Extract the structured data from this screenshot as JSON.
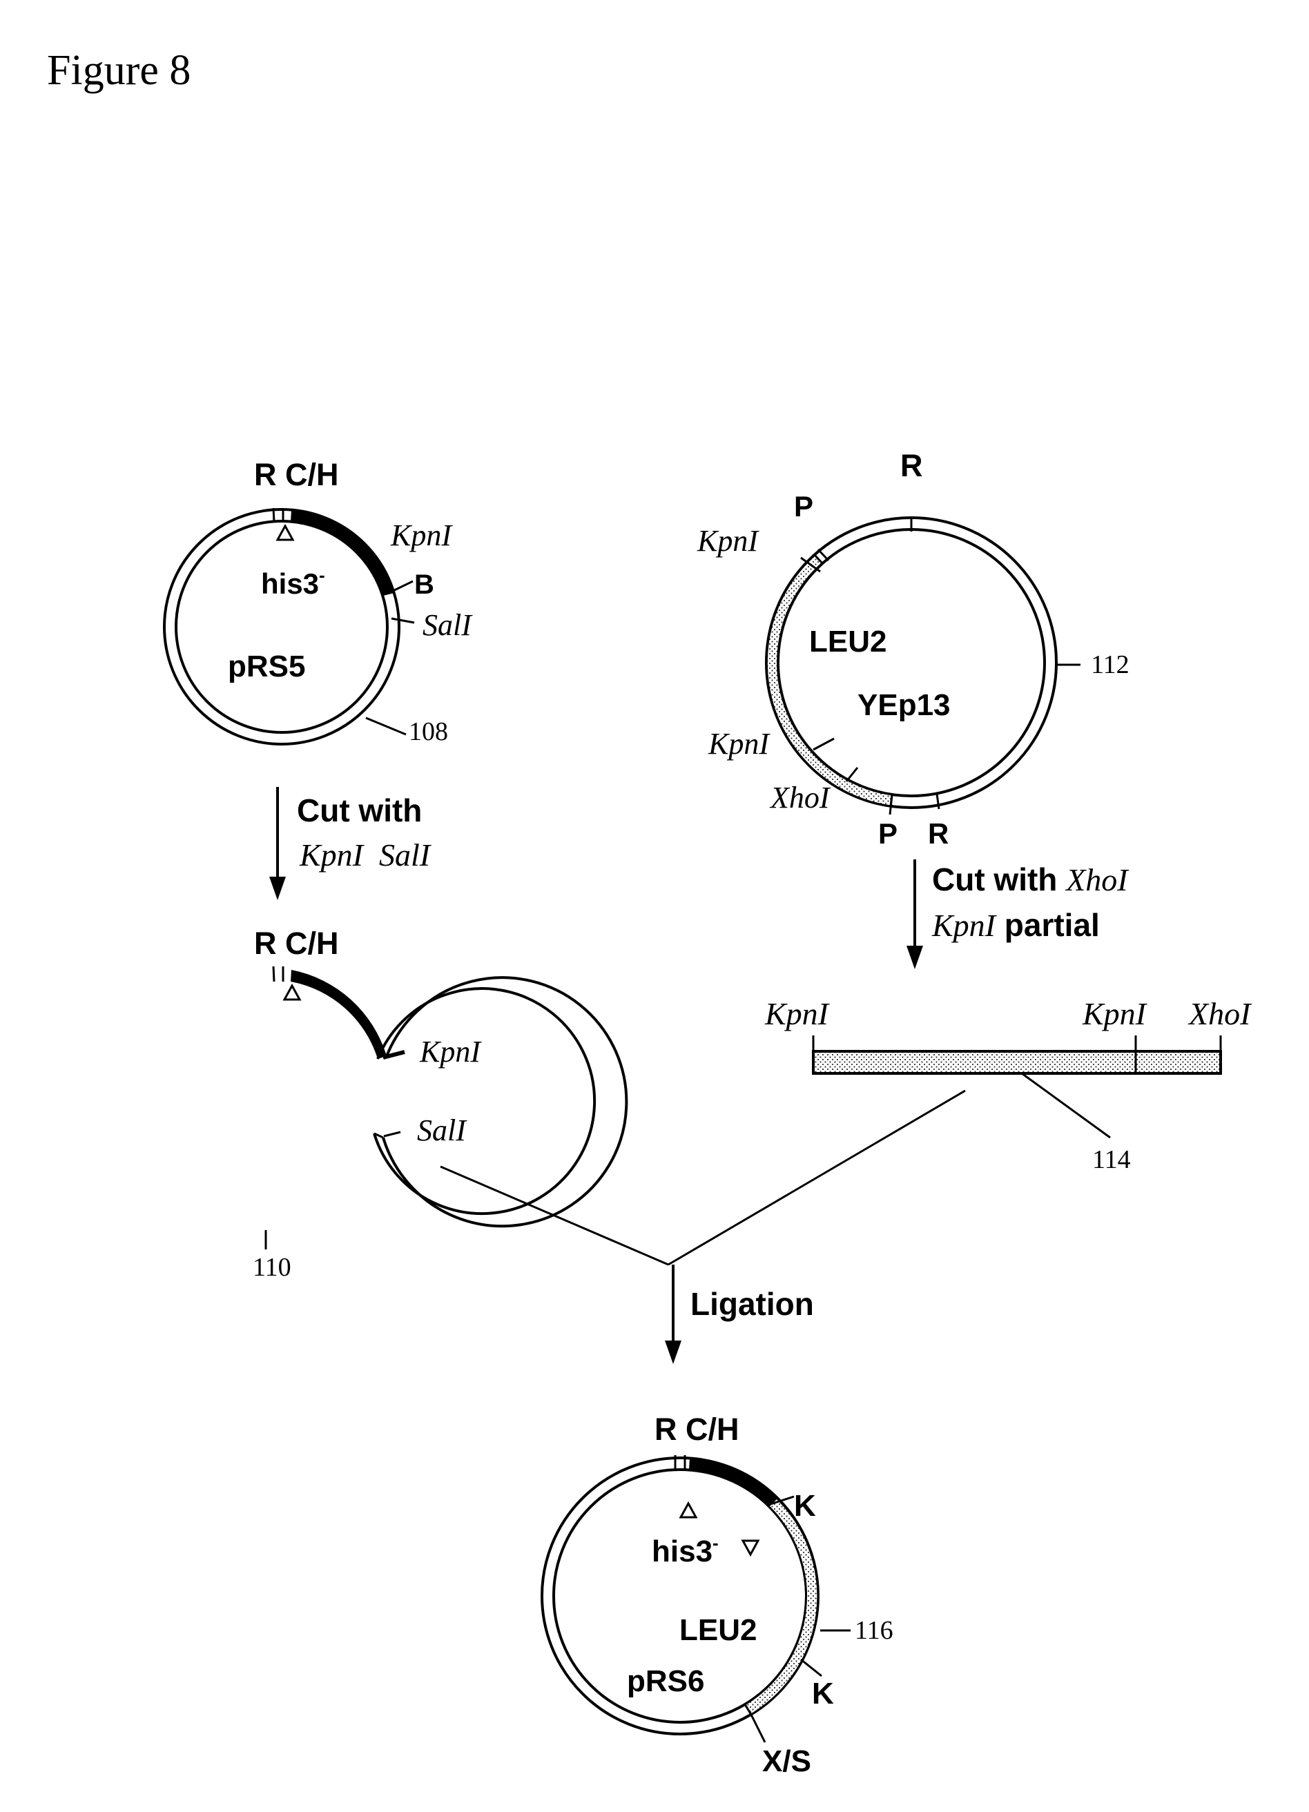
{
  "figure_title": "Figure 8",
  "plasmid_pRS5": {
    "name": "pRS5",
    "gene": "his3",
    "gene_superscript": "-",
    "site_top": "R C/H",
    "site_kpni": "KpnI",
    "site_b": "B",
    "site_sali": "SalI",
    "ref_number": "108"
  },
  "step_cut_left": {
    "line1": "Cut with",
    "line2": "KpnI  SalI"
  },
  "fragment_110": {
    "site_top": "R C/H",
    "site_kpni": "KpnI",
    "site_sali": "SalI",
    "ref_number": "110"
  },
  "plasmid_YEp13": {
    "name": "YEp13",
    "gene": "LEU2",
    "site_r_top": "R",
    "site_p_top": "P",
    "site_kpni_top": "KpnI",
    "site_kpni_bottom": "KpnI",
    "site_xhoi": "XhoI",
    "site_p_bottom": "P",
    "site_r_bottom": "R",
    "ref_number": "112"
  },
  "step_cut_right": {
    "line1_prefix": "Cut with ",
    "line1_enzyme": "XhoI",
    "line2_enzyme": "KpnI",
    "line2_suffix": " partial"
  },
  "fragment_114": {
    "site_left": "KpnI",
    "site_mid": "KpnI",
    "site_right": "XhoI",
    "ref_number": "114"
  },
  "step_ligation": {
    "label": "Ligation"
  },
  "plasmid_pRS6": {
    "name": "pRS6",
    "gene_his": "his3",
    "gene_superscript": "-",
    "gene_leu": "LEU2",
    "site_top": "R C/H",
    "site_k_top": "K",
    "site_k_bottom": "K",
    "site_xs": "X/S",
    "ref_number": "116"
  }
}
